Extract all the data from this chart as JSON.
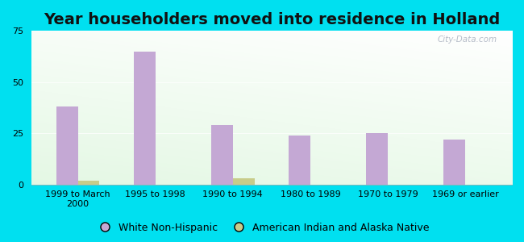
{
  "title": "Year householders moved into residence in Holland",
  "categories": [
    "1999 to March\n2000",
    "1995 to 1998",
    "1990 to 1994",
    "1980 to 1989",
    "1970 to 1979",
    "1969 or earlier"
  ],
  "white_non_hispanic": [
    38,
    65,
    29,
    24,
    25,
    22
  ],
  "american_indian": [
    2,
    0,
    3,
    0,
    0,
    0
  ],
  "white_color": "#c4a8d4",
  "indian_color": "#c8cc8a",
  "ylim": [
    0,
    75
  ],
  "yticks": [
    0,
    25,
    50,
    75
  ],
  "background_outer": "#00e0f0",
  "legend_white_label": "White Non-Hispanic",
  "legend_indian_label": "American Indian and Alaska Native",
  "watermark": "City-Data.com",
  "title_fontsize": 14,
  "tick_fontsize": 8,
  "legend_fontsize": 9
}
